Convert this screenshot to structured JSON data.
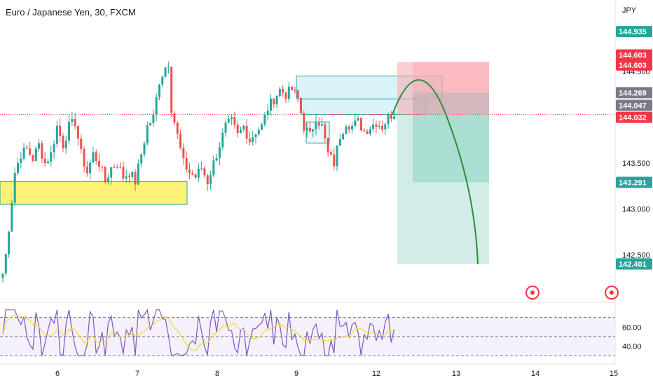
{
  "header": {
    "title": "Euro / Japanese Yen, 30, FXCM",
    "currency": "JPY"
  },
  "colors": {
    "up": "#26a69a",
    "down": "#ef5350",
    "price_line": "#f23645",
    "rsi": "#7e57c2",
    "rsi_ma": "#f5d835",
    "projection": "#2e8b3a",
    "demand_fill": "#fff176",
    "demand_stroke": "#26a69a",
    "zone_fill": "#d6f2f8",
    "zone_stroke": "#26a69a",
    "stop_fill": "#f7a7ad",
    "target_fill": "#8fd3c5"
  },
  "chart_data": [
    {
      "type": "candlestick",
      "title": "Euro / Japanese Yen, 30, FXCM",
      "ylim": [
        142.15,
        145.05
      ],
      "x_ticks": [
        "6",
        "7",
        "8",
        "9",
        "12",
        "13",
        "14",
        "15"
      ],
      "y_ticks": [
        "144.500",
        "143.500",
        "143.000",
        "142.500"
      ],
      "current_price": 144.032,
      "price_badges": [
        {
          "label": "144.935",
          "value": 144.935,
          "color": "#26a69a"
        },
        {
          "label": "144.603",
          "value": 144.68,
          "color": "#f23645"
        },
        {
          "label": "144.603",
          "value": 144.57,
          "color": "#f23645"
        },
        {
          "label": "144.269",
          "value": 144.269,
          "color": "#787b86"
        },
        {
          "label": "144.047",
          "value": 144.13,
          "color": "#787b86"
        },
        {
          "label": "144.032",
          "value": 144.0,
          "color": "#f23645"
        },
        {
          "label": "143.291",
          "value": 143.291,
          "color": "#26a69a"
        },
        {
          "label": "142.401",
          "value": 142.401,
          "color": "#26a69a"
        }
      ],
      "anchors": [
        [
          0,
          142.3
        ],
        [
          1,
          142.5
        ],
        [
          2,
          142.8
        ],
        [
          3,
          143.1
        ],
        [
          4,
          143.4
        ],
        [
          5,
          143.5
        ],
        [
          6,
          143.6
        ],
        [
          8,
          143.65
        ],
        [
          10,
          143.55
        ],
        [
          12,
          143.7
        ],
        [
          14,
          143.5
        ],
        [
          16,
          143.6
        ],
        [
          18,
          143.9
        ],
        [
          20,
          143.7
        ],
        [
          22,
          143.9
        ],
        [
          24,
          143.95
        ],
        [
          26,
          143.6
        ],
        [
          28,
          143.4
        ],
        [
          30,
          143.6
        ],
        [
          32,
          143.5
        ],
        [
          34,
          143.3
        ],
        [
          36,
          143.45
        ],
        [
          38,
          143.5
        ],
        [
          40,
          143.35
        ],
        [
          42,
          143.4
        ],
        [
          44,
          143.3
        ],
        [
          46,
          143.6
        ],
        [
          48,
          143.9
        ],
        [
          50,
          144.0
        ],
        [
          52,
          144.4
        ],
        [
          54,
          144.55
        ],
        [
          55,
          144.6
        ],
        [
          56,
          144.1
        ],
        [
          58,
          143.8
        ],
        [
          60,
          143.5
        ],
        [
          62,
          143.4
        ],
        [
          64,
          143.35
        ],
        [
          66,
          143.45
        ],
        [
          68,
          143.3
        ],
        [
          70,
          143.5
        ],
        [
          72,
          143.7
        ],
        [
          74,
          143.9
        ],
        [
          76,
          143.95
        ],
        [
          78,
          143.8
        ],
        [
          80,
          143.9
        ],
        [
          82,
          143.75
        ],
        [
          84,
          143.85
        ],
        [
          86,
          143.9
        ],
        [
          88,
          144.1
        ],
        [
          90,
          144.2
        ],
        [
          92,
          144.3
        ],
        [
          94,
          144.25
        ],
        [
          96,
          144.3
        ],
        [
          98,
          144.2
        ],
        [
          100,
          143.9
        ],
        [
          102,
          143.8
        ],
        [
          104,
          144.0
        ],
        [
          106,
          143.9
        ],
        [
          108,
          143.6
        ],
        [
          110,
          143.5
        ],
        [
          112,
          143.8
        ],
        [
          114,
          143.95
        ],
        [
          116,
          143.9
        ],
        [
          118,
          143.95
        ],
        [
          120,
          143.85
        ],
        [
          122,
          143.9
        ],
        [
          124,
          143.95
        ],
        [
          126,
          143.9
        ],
        [
          128,
          144.0
        ],
        [
          130,
          144.05
        ]
      ],
      "rsi": {
        "ylim": [
          25,
          80
        ],
        "levels": [
          70,
          50,
          30
        ],
        "y_ticks": [
          "60.00",
          "40.00"
        ]
      }
    }
  ],
  "zones": {
    "demand": {
      "x0": 0,
      "x1": 267,
      "y0": 143.3,
      "y1": 143.05
    },
    "blue_upper": {
      "x0": 423,
      "x1": 631,
      "y0": 144.45,
      "y1": 144.2
    },
    "blue_lower": {
      "x0": 430,
      "x1": 608,
      "y0": 144.2,
      "y1": 144.03
    },
    "blue_small": {
      "x0": 437,
      "x1": 470,
      "y0": 143.95,
      "y1": 143.72
    }
  },
  "trade": {
    "entry": 144.032,
    "stop": 144.603,
    "target": 142.401,
    "inner_target": 143.291
  }
}
